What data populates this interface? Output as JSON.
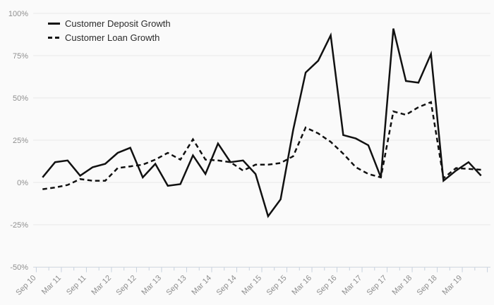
{
  "chart_data": {
    "type": "line",
    "title": "",
    "xlabel": "",
    "ylabel": "",
    "ylim": [
      -50,
      100
    ],
    "grid": "horizontal",
    "legend_position": "top-left",
    "y_ticks": {
      "values": [
        100,
        75,
        50,
        25,
        0,
        -25,
        -50
      ],
      "labels": [
        "100%",
        "75%",
        "50%",
        "25%",
        "0%",
        "-25%",
        "-50%"
      ]
    },
    "x": [
      "Sep 10",
      "Dec 10",
      "Mar 11",
      "Jun 11",
      "Sep 11",
      "Dec 11",
      "Mar 12",
      "Jun 12",
      "Sep 12",
      "Dec 12",
      "Mar 13",
      "Jun 13",
      "Sep 13",
      "Dec 13",
      "Mar 14",
      "Jun 14",
      "Sep 14",
      "Dec 14",
      "Mar 15",
      "Jun 15",
      "Sep 15",
      "Dec 15",
      "Mar 16",
      "Jun 16",
      "Sep 16",
      "Dec 16",
      "Mar 17",
      "Jun 17",
      "Sep 17",
      "Dec 17",
      "Mar 18",
      "Jun 18",
      "Sep 18",
      "Dec 18",
      "Mar 19",
      "Jun 19"
    ],
    "x_tick_labels": [
      "Sep 10",
      "Mar 11",
      "Sep 11",
      "Mar 12",
      "Sep 12",
      "Mar 13",
      "Sep 13",
      "Mar 14",
      "Sep 14",
      "Mar 15",
      "Sep 15",
      "Mar 16",
      "Sep 16",
      "Mar 17",
      "Sep 17",
      "Mar 18",
      "Sep 18",
      "Mar 19"
    ],
    "series": [
      {
        "name": "Customer Deposit Growth",
        "style": "solid",
        "color": "#111111",
        "values": [
          3,
          12,
          13,
          4,
          9,
          11,
          17.5,
          20.5,
          3,
          11,
          -2,
          -1,
          16,
          5,
          23,
          12,
          13,
          5,
          -20,
          -10,
          31,
          65,
          72,
          87,
          28,
          26,
          22,
          3,
          91,
          60,
          59,
          76,
          1,
          7,
          12,
          4
        ]
      },
      {
        "name": "Customer Loan Growth",
        "style": "dashed",
        "color": "#111111",
        "values": [
          -4,
          -3,
          -1.5,
          2,
          1,
          1,
          8.5,
          9.5,
          10.5,
          13.5,
          17.5,
          13.5,
          25.5,
          13.5,
          13,
          12,
          7,
          10.5,
          10.5,
          11.5,
          15.5,
          32.5,
          29,
          24,
          17,
          9,
          5,
          3,
          42,
          40,
          44.5,
          47.5,
          2.5,
          8.5,
          8,
          7.5
        ]
      }
    ],
    "colors": {
      "background": "#fafafa",
      "gridline": "#e8e8e8",
      "axis_line": "#d7dde6",
      "tick": "#c7d1dd",
      "axis_label": "#8f8f8f",
      "line": "#111111",
      "legend_text": "#2b2b2b"
    }
  }
}
